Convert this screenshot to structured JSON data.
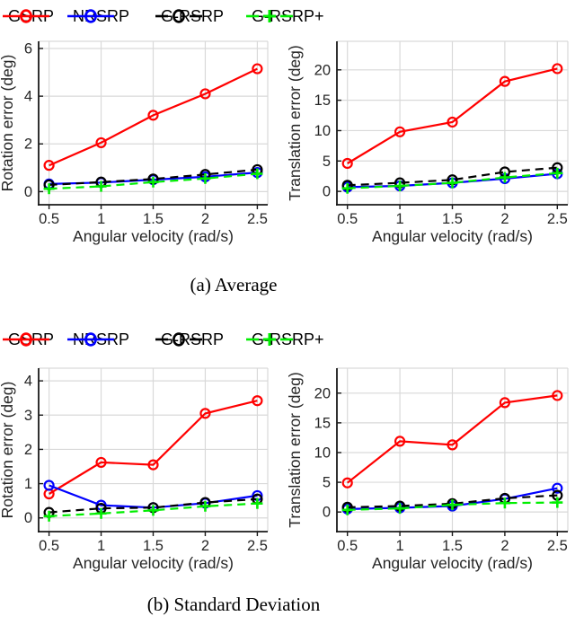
{
  "colors": {
    "gsrp": "#ff0000",
    "nrsrp": "#0000ff",
    "g_rsrp": "#000000",
    "g_rsrp_plus": "#00ee00",
    "grid": "#d9d9d9",
    "axis": "#1a1a1a",
    "tick_text": "#262626"
  },
  "legend": {
    "items": [
      {
        "label": "GSRP",
        "color": "#ff0000",
        "line": "solid",
        "marker": "circle"
      },
      {
        "label": "NRSRP",
        "color": "#0000ff",
        "line": "solid",
        "marker": "circle"
      },
      {
        "label": "G-RSRP",
        "color": "#000000",
        "line": "dashed",
        "marker": "circle"
      },
      {
        "label": "G-RSRP+",
        "color": "#00ee00",
        "line": "dashed",
        "marker": "plus"
      }
    ]
  },
  "captions": {
    "a": "(a) Average",
    "b": "(b) Standard Deviation"
  },
  "chart_data": [
    {
      "type": "line",
      "group": "Average",
      "xlabel": "Angular velocity (rad/s)",
      "ylabel": "Rotation error (deg)",
      "x": [
        0.5,
        1,
        1.5,
        2,
        2.5
      ],
      "xticks": [
        0.5,
        1,
        1.5,
        2,
        2.5
      ],
      "xlim": [
        0.4,
        2.6
      ],
      "ylim": [
        -0.55,
        6.3
      ],
      "yticks": [
        0,
        2,
        4,
        6
      ],
      "grid": true,
      "series": [
        {
          "name": "GSRP",
          "color": "#ff0000",
          "line": "solid",
          "marker": "circle",
          "values": [
            1.1,
            2.05,
            3.2,
            4.1,
            5.15
          ]
        },
        {
          "name": "NRSRP",
          "color": "#0000ff",
          "line": "solid",
          "marker": "circle",
          "values": [
            0.32,
            0.38,
            0.5,
            0.62,
            0.8
          ]
        },
        {
          "name": "G-RSRP",
          "color": "#000000",
          "line": "dashed",
          "marker": "circle",
          "values": [
            0.28,
            0.4,
            0.53,
            0.72,
            0.92
          ]
        },
        {
          "name": "G-RSRP+",
          "color": "#00ee00",
          "line": "dashed",
          "marker": "plus",
          "values": [
            0.12,
            0.22,
            0.4,
            0.55,
            0.75
          ]
        }
      ]
    },
    {
      "type": "line",
      "group": "Average",
      "xlabel": "Angular velocity (rad/s)",
      "ylabel": "Translation error (deg)",
      "x": [
        0.5,
        1,
        1.5,
        2,
        2.5
      ],
      "xticks": [
        0.5,
        1,
        1.5,
        2,
        2.5
      ],
      "xlim": [
        0.4,
        2.6
      ],
      "ylim": [
        -2.2,
        24.7
      ],
      "yticks": [
        0,
        5,
        10,
        15,
        20
      ],
      "grid": true,
      "series": [
        {
          "name": "GSRP",
          "color": "#ff0000",
          "line": "solid",
          "marker": "circle",
          "values": [
            4.6,
            9.8,
            11.4,
            18.1,
            20.2
          ]
        },
        {
          "name": "NRSRP",
          "color": "#0000ff",
          "line": "solid",
          "marker": "circle",
          "values": [
            0.7,
            0.9,
            1.4,
            2.1,
            2.9
          ]
        },
        {
          "name": "G-RSRP",
          "color": "#000000",
          "line": "dashed",
          "marker": "circle",
          "values": [
            1.0,
            1.4,
            1.9,
            3.2,
            3.9
          ]
        },
        {
          "name": "G-RSRP+",
          "color": "#00ee00",
          "line": "dashed",
          "marker": "plus",
          "values": [
            0.5,
            0.9,
            1.4,
            2.3,
            3.0
          ]
        }
      ]
    },
    {
      "type": "line",
      "group": "Standard Deviation",
      "xlabel": "Angular velocity (rad/s)",
      "ylabel": "Rotation error (deg)",
      "x": [
        0.5,
        1,
        1.5,
        2,
        2.5
      ],
      "xticks": [
        0.5,
        1,
        1.5,
        2,
        2.5
      ],
      "xlim": [
        0.4,
        2.6
      ],
      "ylim": [
        -0.4,
        4.37
      ],
      "yticks": [
        0,
        1,
        2,
        3,
        4
      ],
      "grid": true,
      "series": [
        {
          "name": "GSRP",
          "color": "#ff0000",
          "line": "solid",
          "marker": "circle",
          "values": [
            0.7,
            1.62,
            1.55,
            3.05,
            3.42
          ]
        },
        {
          "name": "NRSRP",
          "color": "#0000ff",
          "line": "solid",
          "marker": "circle",
          "values": [
            0.95,
            0.37,
            0.3,
            0.43,
            0.65
          ]
        },
        {
          "name": "G-RSRP",
          "color": "#000000",
          "line": "dashed",
          "marker": "circle",
          "values": [
            0.16,
            0.28,
            0.3,
            0.45,
            0.55
          ]
        },
        {
          "name": "G-RSRP+",
          "color": "#00ee00",
          "line": "dashed",
          "marker": "plus",
          "values": [
            0.05,
            0.13,
            0.22,
            0.34,
            0.42
          ]
        }
      ]
    },
    {
      "type": "line",
      "group": "Standard Deviation",
      "xlabel": "Angular velocity (rad/s)",
      "ylabel": "Translation error (deg)",
      "x": [
        0.5,
        1,
        1.5,
        2,
        2.5
      ],
      "xticks": [
        0.5,
        1,
        1.5,
        2,
        2.5
      ],
      "xlim": [
        0.4,
        2.6
      ],
      "ylim": [
        -3.3,
        24.2
      ],
      "yticks": [
        0,
        5,
        10,
        15,
        20
      ],
      "grid": true,
      "series": [
        {
          "name": "GSRP",
          "color": "#ff0000",
          "line": "solid",
          "marker": "circle",
          "values": [
            4.9,
            11.9,
            11.3,
            18.4,
            19.6
          ]
        },
        {
          "name": "NRSRP",
          "color": "#0000ff",
          "line": "solid",
          "marker": "circle",
          "values": [
            0.5,
            0.7,
            1.0,
            2.2,
            4.0
          ]
        },
        {
          "name": "G-RSRP",
          "color": "#000000",
          "line": "dashed",
          "marker": "circle",
          "values": [
            0.8,
            1.0,
            1.4,
            2.3,
            2.8
          ]
        },
        {
          "name": "G-RSRP+",
          "color": "#00ee00",
          "line": "dashed",
          "marker": "plus",
          "values": [
            0.35,
            0.6,
            1.2,
            1.5,
            1.6
          ]
        }
      ]
    }
  ]
}
